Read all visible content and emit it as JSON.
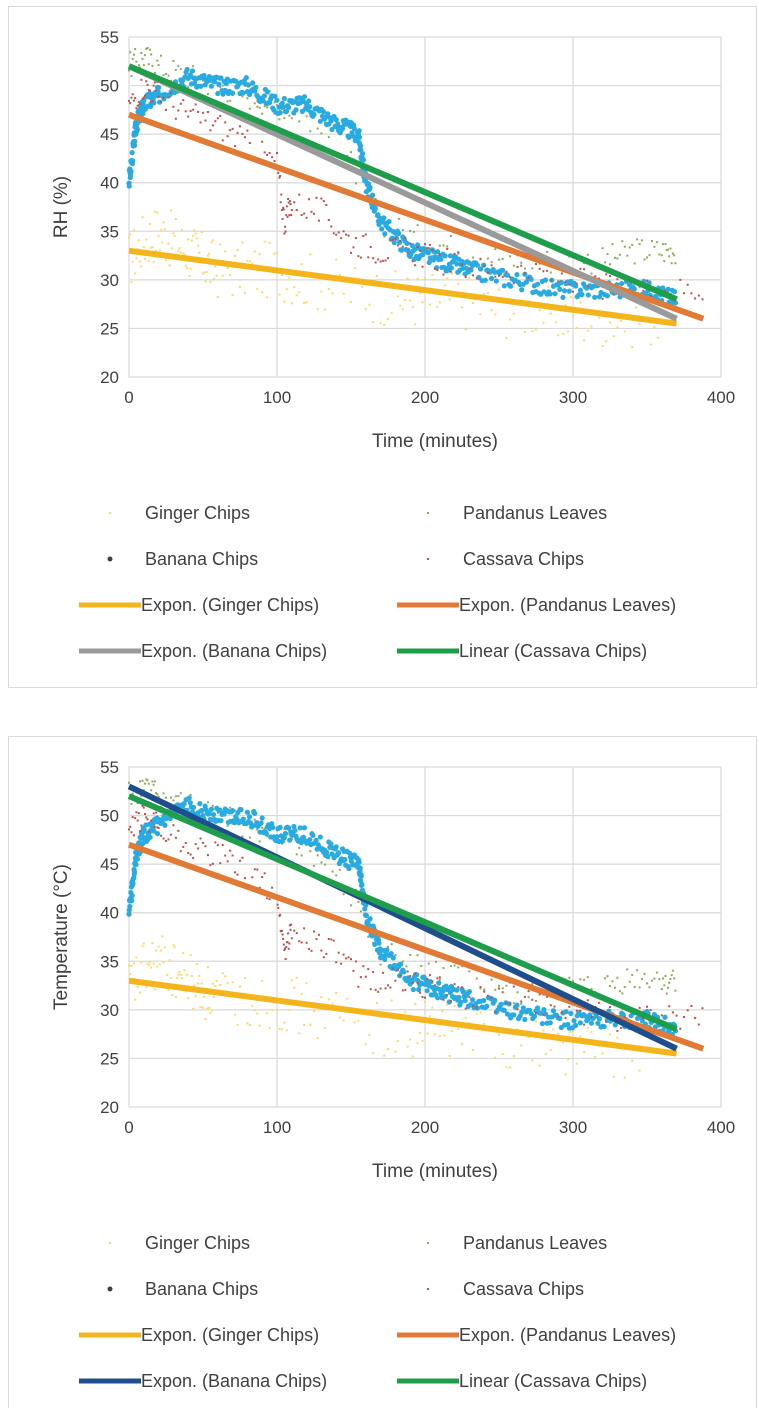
{
  "chart_data": [
    {
      "type": "scatter",
      "title": "",
      "xlabel": "Time (minutes)",
      "ylabel": "RH (%)",
      "xlim": [
        0,
        400
      ],
      "ylim": [
        20,
        55
      ],
      "xticks": [
        "0",
        "100",
        "200",
        "300",
        "400"
      ],
      "yticks": [
        "20",
        "25",
        "30",
        "35",
        "40",
        "45",
        "50",
        "55"
      ],
      "grid": true,
      "legend_position": "bottom",
      "series": [
        {
          "name": "Ginger Chips",
          "kind": "scatter",
          "color": "#ffd966",
          "x": [
            0,
            10,
            20,
            30,
            40,
            50,
            60,
            80,
            100,
            120,
            150,
            180,
            200,
            220,
            250,
            280,
            300,
            330,
            360
          ],
          "y": [
            32,
            34,
            35,
            34,
            33,
            32,
            31,
            31,
            31,
            30,
            29,
            28,
            28,
            28,
            27,
            27,
            26,
            26,
            26
          ]
        },
        {
          "name": "Pandanus Leaves",
          "kind": "scatter",
          "color": "#8faa5c",
          "x": [
            0,
            10,
            20,
            40,
            60,
            80,
            100,
            120,
            150,
            170,
            200,
            230,
            260,
            290,
            320,
            340,
            360,
            370
          ],
          "y": [
            52,
            53,
            52,
            51,
            50,
            49,
            48,
            47,
            42,
            36,
            34,
            33,
            32,
            32,
            32,
            33,
            33,
            33
          ]
        },
        {
          "name": "Banana Chips",
          "kind": "scatter",
          "color": "#29abe2",
          "x": [
            0,
            5,
            10,
            20,
            40,
            60,
            80,
            100,
            120,
            140,
            155,
            160,
            170,
            190,
            210,
            230,
            260,
            290,
            320,
            350,
            370
          ],
          "y": [
            40,
            46,
            48,
            49,
            51,
            50,
            50,
            48,
            48,
            46,
            45,
            40,
            36,
            33,
            32,
            31,
            30,
            29,
            29,
            29,
            28
          ]
        },
        {
          "name": "Cassava Chips",
          "kind": "scatter",
          "color": "#c0504d",
          "x": [
            0,
            10,
            20,
            40,
            60,
            80,
            100,
            105,
            110,
            130,
            150,
            170,
            190,
            210,
            240,
            270,
            300,
            330,
            360,
            390
          ],
          "y": [
            48,
            50,
            49,
            47,
            46,
            44,
            42,
            36,
            38,
            37,
            34,
            33,
            33,
            32,
            31,
            31,
            30,
            29,
            29,
            29
          ]
        },
        {
          "name": "Expon. (Ginger Chips)",
          "kind": "trend",
          "color": "#f4b41c",
          "x": [
            0,
            370
          ],
          "y": [
            33,
            25.5
          ]
        },
        {
          "name": "Expon. (Pandanus Leaves)",
          "kind": "trend",
          "color": "#e07a34",
          "x": [
            0,
            388
          ],
          "y": [
            47,
            26
          ]
        },
        {
          "name": "Expon. (Banana Chips)",
          "kind": "trend",
          "color": "#9a9a9a",
          "x": [
            0,
            370
          ],
          "y": [
            52,
            26
          ]
        },
        {
          "name": "Linear (Cassava Chips)",
          "kind": "trend",
          "color": "#1e9e4a",
          "x": [
            0,
            370
          ],
          "y": [
            52,
            28
          ]
        }
      ]
    },
    {
      "type": "scatter",
      "title": "",
      "xlabel": "Time (minutes)",
      "ylabel": "Temperature (°C)",
      "xlim": [
        0,
        400
      ],
      "ylim": [
        20,
        55
      ],
      "xticks": [
        "0",
        "100",
        "200",
        "300",
        "400"
      ],
      "yticks": [
        "20",
        "25",
        "30",
        "35",
        "40",
        "45",
        "50",
        "55"
      ],
      "grid": true,
      "legend_position": "bottom",
      "series": [
        {
          "name": "Ginger Chips",
          "kind": "scatter",
          "color": "#ffd966",
          "x": [
            0,
            10,
            20,
            30,
            40,
            50,
            60,
            80,
            100,
            120,
            150,
            180,
            200,
            220,
            250,
            280,
            300,
            330,
            360
          ],
          "y": [
            32,
            34,
            35,
            34,
            33,
            32,
            31,
            31,
            31,
            30,
            29,
            28,
            28,
            28,
            27,
            27,
            26,
            26,
            26
          ]
        },
        {
          "name": "Pandanus Leaves",
          "kind": "scatter",
          "color": "#8faa5c",
          "x": [
            0,
            10,
            20,
            40,
            60,
            80,
            100,
            120,
            150,
            170,
            200,
            230,
            260,
            290,
            320,
            340,
            360,
            370
          ],
          "y": [
            52,
            53,
            52,
            51,
            50,
            49,
            48,
            47,
            42,
            36,
            34,
            33,
            32,
            32,
            32,
            33,
            33,
            33
          ]
        },
        {
          "name": "Banana Chips",
          "kind": "scatter",
          "color": "#29abe2",
          "x": [
            0,
            5,
            10,
            20,
            40,
            60,
            80,
            100,
            120,
            140,
            155,
            160,
            170,
            190,
            210,
            230,
            260,
            290,
            320,
            350,
            370
          ],
          "y": [
            40,
            46,
            48,
            49,
            51,
            50,
            50,
            48,
            48,
            46,
            45,
            40,
            36,
            33,
            32,
            31,
            30,
            29,
            29,
            29,
            28
          ]
        },
        {
          "name": "Cassava Chips",
          "kind": "scatter",
          "color": "#c0504d",
          "x": [
            0,
            10,
            20,
            40,
            60,
            80,
            100,
            105,
            110,
            130,
            150,
            170,
            190,
            210,
            240,
            270,
            300,
            330,
            360,
            390
          ],
          "y": [
            48,
            50,
            49,
            47,
            46,
            44,
            42,
            36,
            38,
            37,
            34,
            33,
            33,
            32,
            31,
            31,
            30,
            29,
            29,
            29
          ]
        },
        {
          "name": "Expon. (Ginger Chips)",
          "kind": "trend",
          "color": "#f4b41c",
          "x": [
            0,
            370
          ],
          "y": [
            33,
            25.5
          ]
        },
        {
          "name": "Expon. (Pandanus Leaves)",
          "kind": "trend",
          "color": "#e07a34",
          "x": [
            0,
            388
          ],
          "y": [
            47,
            26
          ]
        },
        {
          "name": "Expon. (Banana Chips)",
          "kind": "trend",
          "color": "#1f4e8c",
          "x": [
            0,
            370
          ],
          "y": [
            53,
            26
          ]
        },
        {
          "name": "Linear (Cassava Chips)",
          "kind": "trend",
          "color": "#1e9e4a",
          "x": [
            0,
            370
          ],
          "y": [
            52,
            28
          ]
        }
      ]
    }
  ]
}
